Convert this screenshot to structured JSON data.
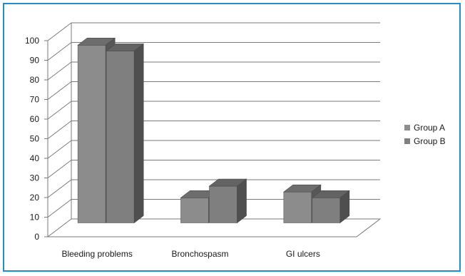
{
  "chart_data": {
    "type": "bar",
    "title": "",
    "xlabel": "",
    "ylabel": "",
    "categories": [
      "Bleeding problems",
      "Bronchospasm",
      "GI ulcers"
    ],
    "series": [
      {
        "name": "Group A",
        "values": [
          92,
          13,
          16
        ],
        "color": "#8c8c8c"
      },
      {
        "name": "Group B",
        "values": [
          89,
          19,
          13
        ],
        "color": "#7f7f7f"
      }
    ],
    "ylim": [
      0,
      100
    ],
    "yticks": [
      0,
      10,
      20,
      30,
      40,
      50,
      60,
      70,
      80,
      90,
      100
    ],
    "grid": true,
    "legend_position": "right",
    "three_d": true
  }
}
